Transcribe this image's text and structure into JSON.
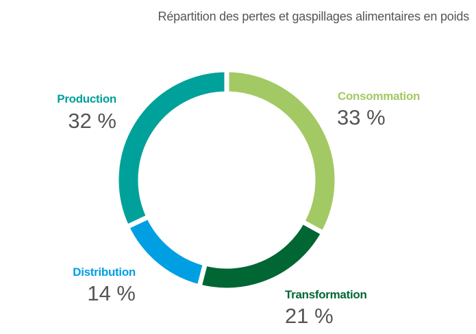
{
  "chart_data": {
    "type": "pie",
    "variant": "donut",
    "title": "Répartition des pertes et gaspillages alimentaires en poids",
    "start": "top",
    "direction": "clockwise",
    "slices": [
      {
        "name": "Consommation",
        "value": 33,
        "label": "33 %",
        "color": "#a2c963"
      },
      {
        "name": "Transformation",
        "value": 21,
        "label": "21 %",
        "color": "#006633"
      },
      {
        "name": "Distribution",
        "value": 14,
        "label": "14 %",
        "color": "#009fe3"
      },
      {
        "name": "Production",
        "value": 32,
        "label": "32 %",
        "color": "#00a19a"
      }
    ]
  }
}
